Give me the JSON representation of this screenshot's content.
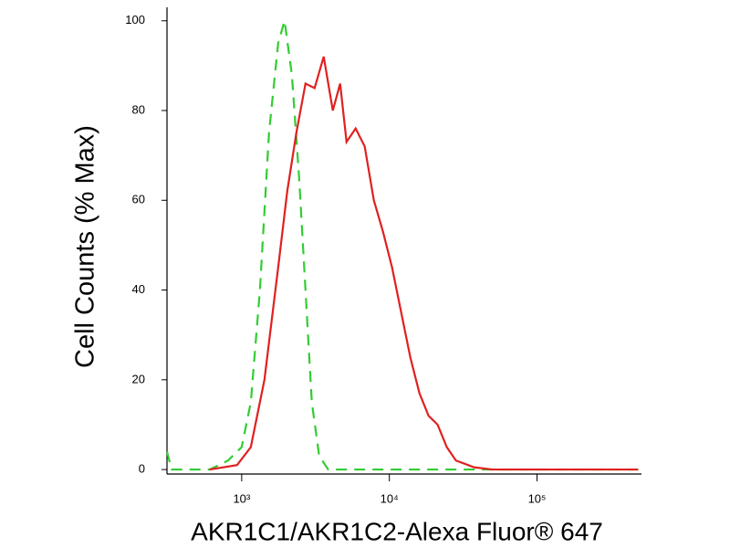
{
  "chart_data": {
    "type": "line",
    "x_label": "AKR1C1/AKR1C2-Alexa Fluor® 647",
    "y_label": "Cell Counts (% Max)",
    "x_scale": "log",
    "xlim": [
      312,
      510000
    ],
    "ylim": [
      -1,
      103
    ],
    "xticks": [
      {
        "value": 1000,
        "label": "10³"
      },
      {
        "value": 10000,
        "label": "10⁴"
      },
      {
        "value": 100000,
        "label": "10⁵"
      }
    ],
    "yticks": [
      0,
      20,
      40,
      60,
      80,
      100
    ],
    "series": [
      {
        "color": "#33cc33",
        "line_style": "dashed",
        "x": [
          312,
          335,
          608,
          808,
          1000,
          1153,
          1329,
          1531,
          1766,
          1951,
          2187,
          2449,
          2705,
          2985,
          3350,
          3857,
          6808,
          28250,
          484000
        ],
        "values": [
          4,
          0,
          0,
          2,
          5,
          15,
          40,
          75,
          95,
          100,
          88,
          65,
          40,
          15,
          3,
          0,
          0,
          0,
          0
        ]
      },
      {
        "color": "#e02020",
        "line_style": "solid",
        "x": [
          608,
          931,
          1153,
          1426,
          1766,
          2035,
          2345,
          2705,
          3118,
          3594,
          4142,
          4643,
          5130,
          5913,
          6808,
          7853,
          9057,
          10440,
          12030,
          13870,
          15990,
          18420,
          21230,
          24480,
          28250,
          37500,
          49900,
          484000
        ],
        "values": [
          0,
          1,
          5,
          20,
          45,
          62,
          75,
          86,
          85,
          92,
          80,
          86,
          73,
          76,
          72,
          60,
          53,
          45,
          35,
          25,
          17,
          12,
          10,
          5,
          2,
          0.5,
          0,
          0
        ]
      }
    ]
  }
}
